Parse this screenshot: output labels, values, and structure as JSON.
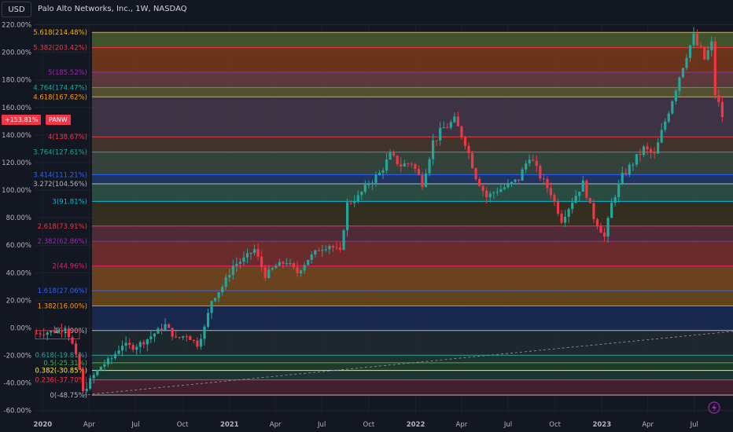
{
  "header": {
    "currency_button": "USD",
    "symbol_title": "Palo Alto Networks, Inc., 1W, NASDAQ"
  },
  "price_badge": {
    "value": "+153.81%",
    "ticker": "PANW"
  },
  "colors": {
    "background": "#131722",
    "candle_up": "#26a69a",
    "candle_down": "#f23645",
    "text": "#b2b5be"
  },
  "chart_data": {
    "type": "candlestick",
    "title": "Palo Alto Networks, Inc., 1W, NASDAQ",
    "y_unit": "%",
    "ylim": [
      -63,
      222
    ],
    "y_ticks": [
      "220.00%",
      "200.00%",
      "180.00%",
      "160.00%",
      "140.00%",
      "120.00%",
      "100.00%",
      "80.00%",
      "60.00%",
      "40.00%",
      "20.00%",
      "0.00%",
      "-20.00%",
      "-40.00%",
      "-60.00%"
    ],
    "x_ticks": [
      "2020",
      "Apr",
      "Jul",
      "Oct",
      "2021",
      "Apr",
      "Jul",
      "Oct",
      "2022",
      "Apr",
      "Jul",
      "Oct",
      "2023",
      "Apr",
      "Jul"
    ],
    "x_start": "2019-12-16",
    "x_end": "2023-09-15",
    "fib_levels": [
      {
        "label": "5.618(214.48%)",
        "value": 214.48,
        "color": "#f5b400",
        "fill": "#4a5e2c"
      },
      {
        "label": "5.382(203.42%)",
        "value": 203.42,
        "color": "#f23645",
        "fill": "#7a3a1a"
      },
      {
        "label": "5(185.52%)",
        "value": 185.52,
        "color": "#9c27b0",
        "fill": "#6a3e3e"
      },
      {
        "label": "4.764(174.47%)",
        "value": 174.47,
        "color": "#26a69a",
        "fill": "#5e5a30"
      },
      {
        "label": "4.618(167.62%)",
        "value": 167.62,
        "color": "#ff9800",
        "fill": "#45384a"
      },
      {
        "label": "4(138.67%)",
        "value": 138.67,
        "color": "#f23645",
        "fill": "#4a3a2e"
      },
      {
        "label": "3.764(127.61%)",
        "value": 127.61,
        "color": "#26a69a",
        "fill": "#3a4a3e"
      },
      {
        "label": "3.414(111.21%)",
        "value": 111.21,
        "color": "#2962ff",
        "fill": "#23396b"
      },
      {
        "label": "3.272(104.56%)",
        "value": 104.56,
        "color": "#b2b5be",
        "fill": "#2e5548"
      },
      {
        "label": "3(91.81%)",
        "value": 91.81,
        "color": "#00bcd4",
        "fill": "#3a3320"
      },
      {
        "label": "2.618(73.91%)",
        "value": 73.91,
        "color": "#f23645",
        "fill": "#5a2f3e"
      },
      {
        "label": "2.382(62.86%)",
        "value": 62.86,
        "color": "#9c27b0",
        "fill": "#7a2f2f"
      },
      {
        "label": "2(44.96%)",
        "value": 44.96,
        "color": "#e91e63",
        "fill": "#7a4a1e"
      },
      {
        "label": "1.618(27.06%)",
        "value": 27.06,
        "color": "#2962ff",
        "fill": "#6e4a1a"
      },
      {
        "label": "1.382(16.00%)",
        "value": 16.0,
        "color": "#ff9800",
        "fill": "#1a2a55"
      },
      {
        "label": "1(-1.90%)",
        "value": -1.9,
        "color": "#b2b5be",
        "fill": "#1e2a30"
      },
      {
        "label": "0.618(-19.81%)",
        "value": -19.81,
        "color": "#26a69a",
        "fill": "#1f3a30"
      },
      {
        "label": "0.5(-25.31%)",
        "value": -25.31,
        "color": "#4caf50",
        "fill": "#23402a"
      },
      {
        "label": "0.382(-30.85%)",
        "value": -30.85,
        "color": "#ffeb3b",
        "fill": "#1e3a36"
      },
      {
        "label": "0.236(-37.70%)",
        "value": -37.7,
        "color": "#f23645",
        "fill": "#4a2230"
      },
      {
        "label": "0(-48.75%)",
        "value": -48.75,
        "color": "#b2b5be",
        "fill": null
      }
    ],
    "close_series": [
      [
        "2019-12-20",
        -4
      ],
      [
        "2020-01-10",
        -3
      ],
      [
        "2020-01-31",
        -2
      ],
      [
        "2020-02-14",
        1
      ],
      [
        "2020-02-28",
        -12
      ],
      [
        "2020-03-13",
        -30
      ],
      [
        "2020-03-20",
        -47
      ],
      [
        "2020-04-03",
        -38
      ],
      [
        "2020-04-24",
        -28
      ],
      [
        "2020-05-15",
        -22
      ],
      [
        "2020-06-05",
        -12
      ],
      [
        "2020-06-26",
        -14
      ],
      [
        "2020-07-17",
        -10
      ],
      [
        "2020-08-07",
        -4
      ],
      [
        "2020-08-28",
        2
      ],
      [
        "2020-09-18",
        -8
      ],
      [
        "2020-10-09",
        -5
      ],
      [
        "2020-10-30",
        -12
      ],
      [
        "2020-11-13",
        0
      ],
      [
        "2020-11-27",
        20
      ],
      [
        "2020-12-18",
        30
      ],
      [
        "2021-01-08",
        45
      ],
      [
        "2021-01-29",
        50
      ],
      [
        "2021-02-19",
        57
      ],
      [
        "2021-03-12",
        38
      ],
      [
        "2021-04-02",
        45
      ],
      [
        "2021-04-23",
        48
      ],
      [
        "2021-05-14",
        40
      ],
      [
        "2021-06-04",
        50
      ],
      [
        "2021-06-25",
        57
      ],
      [
        "2021-07-16",
        60
      ],
      [
        "2021-08-06",
        55
      ],
      [
        "2021-08-20",
        90
      ],
      [
        "2021-09-10",
        95
      ],
      [
        "2021-10-01",
        105
      ],
      [
        "2021-10-22",
        112
      ],
      [
        "2021-11-12",
        125
      ],
      [
        "2021-12-03",
        118
      ],
      [
        "2021-12-24",
        120
      ],
      [
        "2022-01-14",
        105
      ],
      [
        "2022-02-04",
        135
      ],
      [
        "2022-02-25",
        145
      ],
      [
        "2022-03-18",
        150
      ],
      [
        "2022-04-08",
        135
      ],
      [
        "2022-04-29",
        110
      ],
      [
        "2022-05-20",
        95
      ],
      [
        "2022-06-10",
        100
      ],
      [
        "2022-07-01",
        103
      ],
      [
        "2022-07-22",
        108
      ],
      [
        "2022-08-12",
        125
      ],
      [
        "2022-09-02",
        110
      ],
      [
        "2022-09-23",
        98
      ],
      [
        "2022-10-14",
        78
      ],
      [
        "2022-11-04",
        92
      ],
      [
        "2022-11-25",
        105
      ],
      [
        "2022-12-16",
        80
      ],
      [
        "2023-01-06",
        66
      ],
      [
        "2023-01-20",
        90
      ],
      [
        "2023-02-10",
        110
      ],
      [
        "2023-03-03",
        120
      ],
      [
        "2023-03-24",
        130
      ],
      [
        "2023-04-14",
        125
      ],
      [
        "2023-05-05",
        150
      ],
      [
        "2023-05-26",
        175
      ],
      [
        "2023-06-16",
        200
      ],
      [
        "2023-06-30",
        210
      ],
      [
        "2023-07-21",
        195
      ],
      [
        "2023-08-04",
        205
      ],
      [
        "2023-08-11",
        170
      ],
      [
        "2023-08-25",
        153.81
      ]
    ],
    "last_value": 153.81
  }
}
